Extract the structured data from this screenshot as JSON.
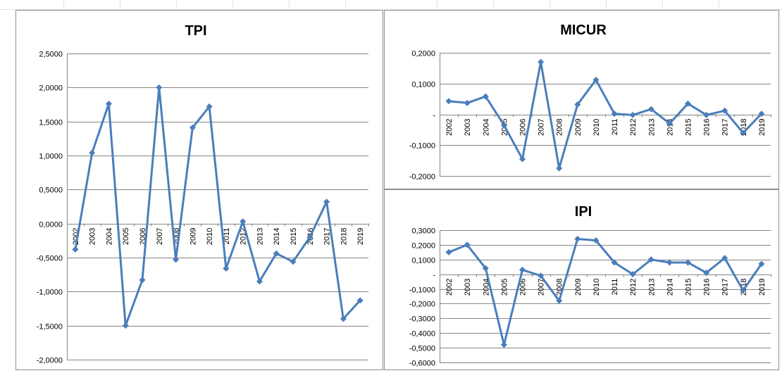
{
  "chart_data": [
    {
      "id": "tpi",
      "type": "line",
      "title": "TPI",
      "categories": [
        "2002",
        "2003",
        "2004",
        "2005",
        "2006",
        "2007",
        "2008",
        "2009",
        "2010",
        "2011",
        "2012",
        "2013",
        "2014",
        "2015",
        "2016",
        "2017",
        "2018",
        "2019"
      ],
      "values": [
        -0.38,
        1.04,
        1.76,
        -1.5,
        -0.83,
        2.0,
        -0.53,
        1.41,
        1.72,
        -0.66,
        0.03,
        -0.85,
        -0.44,
        -0.56,
        -0.2,
        0.32,
        -1.4,
        -1.13
      ],
      "ylim": [
        -2,
        2.5
      ],
      "yticks": [
        -2,
        -1.5,
        -1,
        -0.5,
        0,
        0.5,
        1,
        1.5,
        2,
        2.5
      ],
      "ytick_labels": [
        "-2,0000",
        "-1,5000",
        "-1,0000",
        "-0,5000",
        "0,0000",
        "0,5000",
        "1,0000",
        "1,5000",
        "2,0000",
        "2,5000"
      ],
      "grid": true,
      "line_color": "#4a7ebb"
    },
    {
      "id": "micur",
      "type": "line",
      "title": "MICUR",
      "categories": [
        "2002",
        "2003",
        "2004",
        "2005",
        "2006",
        "2007",
        "2008",
        "2009",
        "2010",
        "2011",
        "2012",
        "2013",
        "2014",
        "2015",
        "2016",
        "2017",
        "2018",
        "2019"
      ],
      "values": [
        0.043,
        0.037,
        0.058,
        -0.035,
        -0.145,
        0.17,
        -0.175,
        0.032,
        0.112,
        0.002,
        -0.002,
        0.017,
        -0.03,
        0.035,
        -0.002,
        0.012,
        -0.06,
        0.002
      ],
      "ylim": [
        -0.2,
        0.2
      ],
      "yticks": [
        -0.2,
        -0.1,
        0,
        0.1,
        0.2
      ],
      "ytick_labels": [
        "-0,2000",
        "-0,1000",
        "-",
        "0,1000",
        "0,2000"
      ],
      "grid": true,
      "line_color": "#4a7ebb"
    },
    {
      "id": "ipi",
      "type": "line",
      "title": "IPI",
      "categories": [
        "2002",
        "2003",
        "2004",
        "2005",
        "2006",
        "2007",
        "2008",
        "2009",
        "2010",
        "2011",
        "2012",
        "2013",
        "2014",
        "2015",
        "2016",
        "2017",
        "2018",
        "2019"
      ],
      "values": [
        0.15,
        0.2,
        0.04,
        -0.48,
        0.03,
        -0.01,
        -0.18,
        0.24,
        0.23,
        0.08,
        0.0,
        0.1,
        0.08,
        0.08,
        0.01,
        0.11,
        -0.11,
        0.07
      ],
      "ylim": [
        -0.6,
        0.3
      ],
      "yticks": [
        -0.6,
        -0.5,
        -0.4,
        -0.3,
        -0.2,
        -0.1,
        0,
        0.1,
        0.2,
        0.3
      ],
      "ytick_labels": [
        "-0,6000",
        "-0,5000",
        "-0,4000",
        "-0,3000",
        "-0,2000",
        "-0,1000",
        "-",
        "0,1000",
        "0,2000",
        "0,3000"
      ],
      "grid": true,
      "line_color": "#4a7ebb"
    }
  ]
}
